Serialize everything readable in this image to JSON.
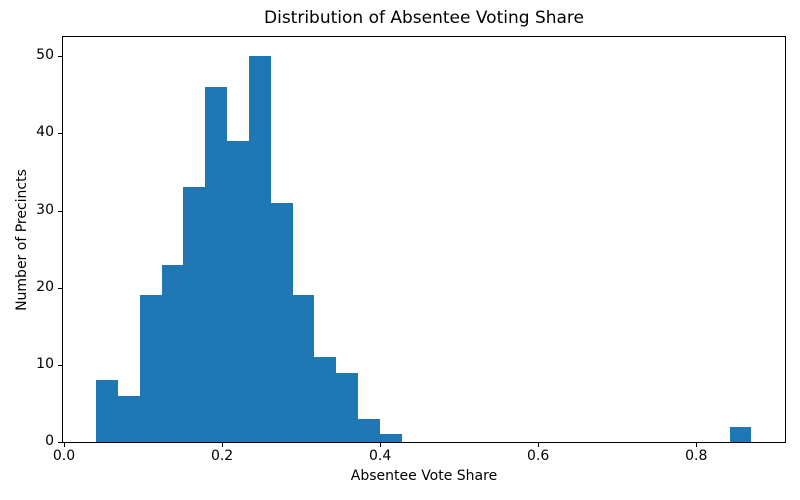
{
  "chart_data": {
    "type": "histogram",
    "title": "Distribution of Absentee Voting Share",
    "xlabel": "Absentee Vote Share",
    "ylabel": "Number of Precincts",
    "bar_color": "#1f77b4",
    "background_color": "#ffffff",
    "spine_color": "#000000",
    "bin_start": 0.0404,
    "bin_width": 0.02765,
    "counts": [
      8,
      6,
      19,
      23,
      33,
      46,
      39,
      50,
      31,
      19,
      11,
      9,
      3,
      1,
      0,
      0,
      0,
      0,
      0,
      0,
      0,
      0,
      0,
      0,
      0,
      0,
      0,
      0,
      0,
      2
    ],
    "xlim": [
      -0.0013,
      0.9123
    ],
    "ylim": [
      0,
      52.5
    ],
    "x_ticks": [
      0.0,
      0.2,
      0.4,
      0.6,
      0.8
    ],
    "x_tick_labels": [
      "0.0",
      "0.2",
      "0.4",
      "0.6",
      "0.8"
    ],
    "y_ticks": [
      0,
      10,
      20,
      30,
      40,
      50
    ],
    "y_tick_labels": [
      "0",
      "10",
      "20",
      "30",
      "40",
      "50"
    ],
    "grid": false,
    "legend": null
  }
}
